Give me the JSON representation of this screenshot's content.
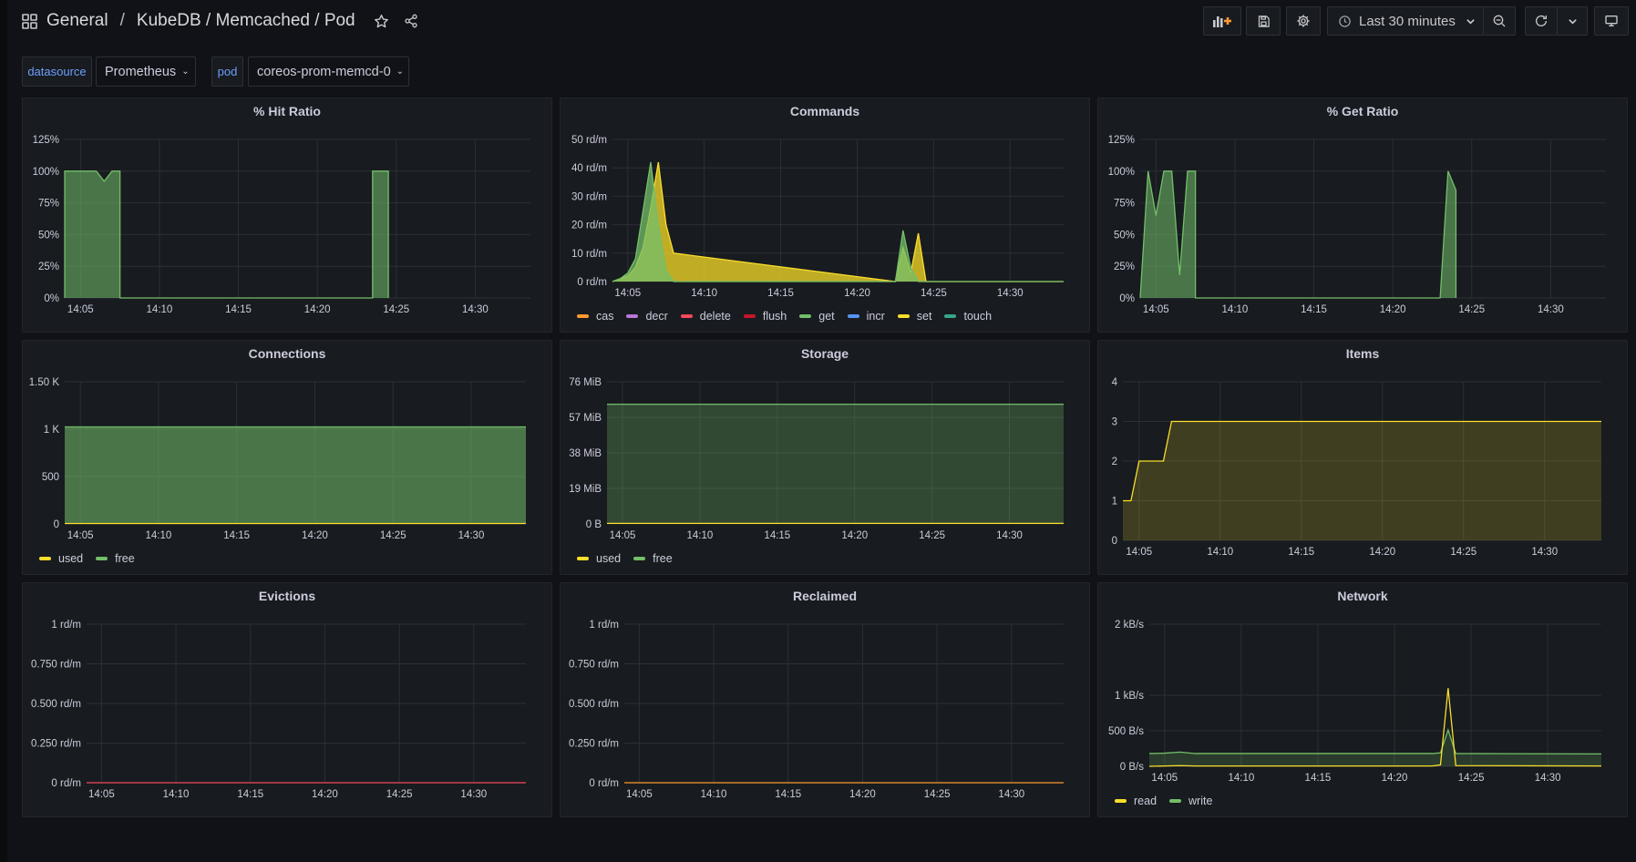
{
  "header": {
    "breadcrumb": [
      "General",
      "KubeDB / Memcached / Pod"
    ],
    "time_range": "Last 30 minutes"
  },
  "icons": {
    "dashboards": "grid-icon",
    "star": "star-icon",
    "share": "share-icon",
    "add_panel": "add-panel-icon",
    "save": "save-icon",
    "settings": "gear-icon",
    "clock": "clock-icon",
    "zoom_out": "zoom-out-icon",
    "refresh": "refresh-icon",
    "tv": "monitor-icon"
  },
  "variables": [
    {
      "label": "datasource",
      "value": "Prometheus"
    },
    {
      "label": "pod",
      "value": "coreos-prom-memcd-0"
    }
  ],
  "colors": {
    "green": "#73bf69",
    "yellow": "#fade2a",
    "orange": "#ff9830",
    "purple": "#b877d9",
    "red": "#f2495c",
    "darkred": "#c4162a",
    "blue": "#5794f2",
    "teal": "#37a58c"
  },
  "chart_data": [
    {
      "id": "hit-ratio",
      "title": "% Hit Ratio",
      "type": "area",
      "y_ticks": [
        "0%",
        "25%",
        "50%",
        "75%",
        "100%",
        "125%"
      ],
      "ylim": [
        0,
        125
      ],
      "x_ticks": [
        "14:05",
        "14:10",
        "14:15",
        "14:20",
        "14:25",
        "14:30"
      ],
      "legend": [],
      "series": [
        {
          "name": "",
          "color": "green",
          "fill": 0.55,
          "x": [
            "14:04:00",
            "14:04:00",
            "14:06:00",
            "14:06:30",
            "14:07:00",
            "14:07:30",
            "14:07:30",
            "14:23:30",
            "14:23:30",
            "14:24:30",
            "14:24:30"
          ],
          "y": [
            0,
            100,
            100,
            92,
            100,
            100,
            0,
            0,
            100,
            100,
            0
          ]
        }
      ]
    },
    {
      "id": "commands",
      "title": "Commands",
      "type": "area",
      "y_ticks": [
        "0 rd/m",
        "10 rd/m",
        "20 rd/m",
        "30 rd/m",
        "40 rd/m",
        "50 rd/m"
      ],
      "ylim": [
        0,
        50
      ],
      "x_ticks": [
        "14:05",
        "14:10",
        "14:15",
        "14:20",
        "14:25",
        "14:30"
      ],
      "legend": [
        {
          "name": "cas",
          "color": "orange"
        },
        {
          "name": "decr",
          "color": "purple"
        },
        {
          "name": "delete",
          "color": "red"
        },
        {
          "name": "flush",
          "color": "darkred"
        },
        {
          "name": "get",
          "color": "green"
        },
        {
          "name": "incr",
          "color": "blue"
        },
        {
          "name": "set",
          "color": "yellow"
        },
        {
          "name": "touch",
          "color": "teal"
        }
      ],
      "series": [
        {
          "name": "set",
          "color": "yellow",
          "fill": 0.75,
          "x": [
            "14:04:00",
            "14:05:00",
            "14:05:30",
            "14:06:00",
            "14:06:30",
            "14:07:00",
            "14:07:30",
            "14:08:00",
            "14:22:30",
            "14:23:00",
            "14:23:30",
            "14:24:00",
            "14:24:30",
            "14:33:30"
          ],
          "y": [
            0,
            2,
            5,
            12,
            26,
            42,
            20,
            10,
            0,
            12,
            3,
            17,
            0,
            0
          ]
        },
        {
          "name": "get",
          "color": "green",
          "fill": 0.75,
          "x": [
            "14:04:00",
            "14:04:30",
            "14:05:00",
            "14:05:30",
            "14:06:00",
            "14:06:30",
            "14:07:00",
            "14:07:30",
            "14:08:00",
            "14:22:30",
            "14:23:00",
            "14:23:30",
            "14:24:00",
            "14:33:30"
          ],
          "y": [
            0,
            1,
            3,
            8,
            25,
            42,
            20,
            4,
            0,
            0,
            18,
            5,
            0,
            0
          ]
        }
      ]
    },
    {
      "id": "get-ratio",
      "title": "% Get Ratio",
      "type": "area",
      "y_ticks": [
        "0%",
        "25%",
        "50%",
        "75%",
        "100%",
        "125%"
      ],
      "ylim": [
        0,
        125
      ],
      "x_ticks": [
        "14:05",
        "14:10",
        "14:15",
        "14:20",
        "14:25",
        "14:30"
      ],
      "legend": [],
      "series": [
        {
          "name": "",
          "color": "green",
          "fill": 0.55,
          "x": [
            "14:04:00",
            "14:04:30",
            "14:05:00",
            "14:05:30",
            "14:06:00",
            "14:06:30",
            "14:07:00",
            "14:07:30",
            "14:07:30",
            "14:23:00",
            "14:23:30",
            "14:24:00",
            "14:24:00"
          ],
          "y": [
            0,
            100,
            65,
            100,
            100,
            18,
            100,
            100,
            0,
            0,
            100,
            85,
            0
          ]
        }
      ]
    },
    {
      "id": "connections",
      "title": "Connections",
      "type": "area",
      "y_ticks": [
        "0",
        "500",
        "1 K",
        "1.50 K"
      ],
      "ylim": [
        0,
        1500
      ],
      "x_ticks": [
        "14:05",
        "14:10",
        "14:15",
        "14:20",
        "14:25",
        "14:30"
      ],
      "legend": [
        {
          "name": "used",
          "color": "yellow"
        },
        {
          "name": "free",
          "color": "green"
        }
      ],
      "series": [
        {
          "name": "free",
          "color": "green",
          "fill": 0.55,
          "x": [
            "14:04:00",
            "14:33:30"
          ],
          "y": [
            1024,
            1024
          ]
        },
        {
          "name": "used",
          "color": "yellow",
          "fill": 0,
          "x": [
            "14:04:00",
            "14:33:30"
          ],
          "y": [
            5,
            5
          ]
        }
      ]
    },
    {
      "id": "storage",
      "title": "Storage",
      "type": "area",
      "y_ticks": [
        "0 B",
        "19 MiB",
        "38 MiB",
        "57 MiB",
        "76 MiB"
      ],
      "ylim": [
        0,
        76
      ],
      "x_ticks": [
        "14:05",
        "14:10",
        "14:15",
        "14:20",
        "14:25",
        "14:30"
      ],
      "legend": [
        {
          "name": "used",
          "color": "yellow"
        },
        {
          "name": "free",
          "color": "green"
        }
      ],
      "series": [
        {
          "name": "free",
          "color": "green",
          "fill": 0.28,
          "x": [
            "14:04:00",
            "14:33:30"
          ],
          "y": [
            64,
            64
          ]
        },
        {
          "name": "used",
          "color": "yellow",
          "fill": 0,
          "x": [
            "14:04:00",
            "14:33:30"
          ],
          "y": [
            0.3,
            0.3
          ]
        }
      ]
    },
    {
      "id": "items",
      "title": "Items",
      "type": "line",
      "y_ticks": [
        "0",
        "1",
        "2",
        "3",
        "4"
      ],
      "ylim": [
        0,
        4
      ],
      "x_ticks": [
        "14:05",
        "14:10",
        "14:15",
        "14:20",
        "14:25",
        "14:30"
      ],
      "legend": [],
      "series": [
        {
          "name": "",
          "color": "yellow",
          "fill": 0.18,
          "x": [
            "14:04:00",
            "14:04:30",
            "14:05:00",
            "14:06:30",
            "14:07:00",
            "14:33:30"
          ],
          "y": [
            1,
            1,
            2,
            2,
            3,
            3
          ]
        }
      ]
    },
    {
      "id": "evictions",
      "title": "Evictions",
      "type": "line",
      "y_ticks": [
        "0 rd/m",
        "0.250 rd/m",
        "0.500 rd/m",
        "0.750 rd/m",
        "1 rd/m"
      ],
      "ylim": [
        0,
        1
      ],
      "x_ticks": [
        "14:05",
        "14:10",
        "14:15",
        "14:20",
        "14:25",
        "14:30"
      ],
      "legend": [],
      "series": [
        {
          "name": "",
          "color": "red",
          "fill": 0,
          "x": [
            "14:04:00",
            "14:33:30"
          ],
          "y": [
            0,
            0
          ]
        }
      ]
    },
    {
      "id": "reclaimed",
      "title": "Reclaimed",
      "type": "line",
      "y_ticks": [
        "0 rd/m",
        "0.250 rd/m",
        "0.500 rd/m",
        "0.750 rd/m",
        "1 rd/m"
      ],
      "ylim": [
        0,
        1
      ],
      "x_ticks": [
        "14:05",
        "14:10",
        "14:15",
        "14:20",
        "14:25",
        "14:30"
      ],
      "legend": [],
      "series": [
        {
          "name": "",
          "color": "orange",
          "fill": 0,
          "x": [
            "14:04:00",
            "14:33:30"
          ],
          "y": [
            0,
            0
          ]
        }
      ]
    },
    {
      "id": "network",
      "title": "Network",
      "type": "area",
      "y_ticks": [
        "0 B/s",
        "500 B/s",
        "1 kB/s",
        "2 kB/s"
      ],
      "ylim": [
        0,
        2000
      ],
      "x_ticks": [
        "14:05",
        "14:10",
        "14:15",
        "14:20",
        "14:25",
        "14:30"
      ],
      "legend": [
        {
          "name": "read",
          "color": "yellow"
        },
        {
          "name": "write",
          "color": "green"
        }
      ],
      "series": [
        {
          "name": "write",
          "color": "green",
          "fill": 0.2,
          "x": [
            "14:04:00",
            "14:05:00",
            "14:06:00",
            "14:07:00",
            "14:22:30",
            "14:23:00",
            "14:23:30",
            "14:24:00",
            "14:33:30"
          ],
          "y": [
            180,
            185,
            200,
            180,
            180,
            190,
            510,
            180,
            175
          ]
        },
        {
          "name": "read",
          "color": "yellow",
          "fill": 0,
          "x": [
            "14:04:00",
            "14:05:00",
            "14:06:00",
            "14:07:00",
            "14:22:30",
            "14:23:00",
            "14:23:30",
            "14:24:00",
            "14:33:30"
          ],
          "y": [
            0,
            5,
            10,
            5,
            5,
            20,
            1100,
            10,
            5
          ]
        }
      ]
    }
  ]
}
